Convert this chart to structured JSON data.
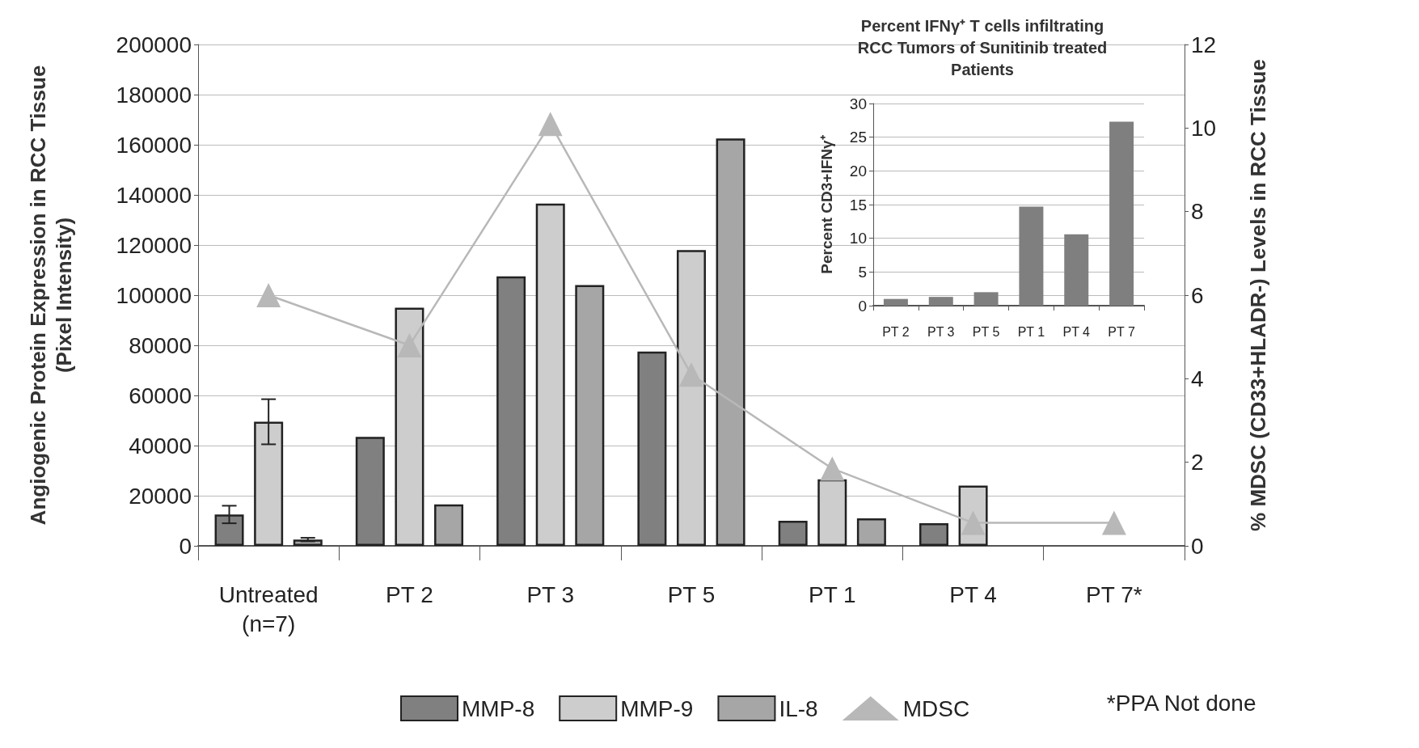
{
  "chart_data": [
    {
      "type": "bar",
      "categories": [
        "Untreated\n(n=7)",
        "PT 2",
        "PT 3",
        "PT 5",
        "PT 1",
        "PT 4",
        "PT 7*"
      ],
      "ylabel": "Angiogenic Protein Expression in RCC Tissue\n(Pixel Intensity)",
      "y2label": "% MDSC (CD33+HLADR-) Levels in RCC Tissue",
      "series": [
        {
          "name": "MMP-8",
          "color": "#808080",
          "values": [
            12500,
            43500,
            107500,
            77500,
            10000,
            9000,
            null
          ],
          "errors": [
            3500,
            null,
            null,
            null,
            null,
            null,
            null
          ]
        },
        {
          "name": "MMP-9",
          "color": "#cdcdcd",
          "values": [
            49500,
            95000,
            136500,
            118000,
            26500,
            24000,
            null
          ],
          "errors": [
            9000,
            null,
            null,
            null,
            null,
            null,
            null
          ]
        },
        {
          "name": "IL-8",
          "color": "#a6a6a6",
          "values": [
            2500,
            16500,
            104000,
            162500,
            11000,
            null,
            null
          ],
          "errors": [
            700,
            null,
            null,
            null,
            null,
            null,
            null
          ]
        },
        {
          "name": "MDSC",
          "type": "line",
          "axis": "y2",
          "color": "#b8b8b8",
          "values": [
            6.0,
            4.8,
            10.1,
            4.1,
            1.85,
            0.55,
            0.55
          ]
        }
      ],
      "ylim": [
        0,
        200000
      ],
      "yticks": [
        0,
        20000,
        40000,
        60000,
        80000,
        100000,
        120000,
        140000,
        160000,
        180000,
        200000
      ],
      "y2lim": [
        0,
        12
      ],
      "y2ticks": [
        0,
        2,
        4,
        6,
        8,
        10,
        12
      ],
      "grid": "y",
      "legend": "bottom",
      "marker": "triangle",
      "annotations": [
        "*PPA Not done"
      ]
    },
    {
      "type": "bar",
      "title": "Percent IFNγ⁺ T cells infiltrating\nRCC Tumors of Sunitinib treated\nPatients",
      "categories": [
        "PT 2",
        "PT 3",
        "PT 5",
        "PT 1",
        "PT 4",
        "PT 7"
      ],
      "ylabel": "Percent CD3+IFNγ⁺",
      "color": "#7f7f7f",
      "values": [
        1,
        1.3,
        2,
        14.7,
        10.6,
        27.3
      ],
      "ylim": [
        0,
        30
      ],
      "yticks": [
        0,
        5,
        10,
        15,
        20,
        25,
        30
      ],
      "grid": "y",
      "legend": false
    }
  ]
}
